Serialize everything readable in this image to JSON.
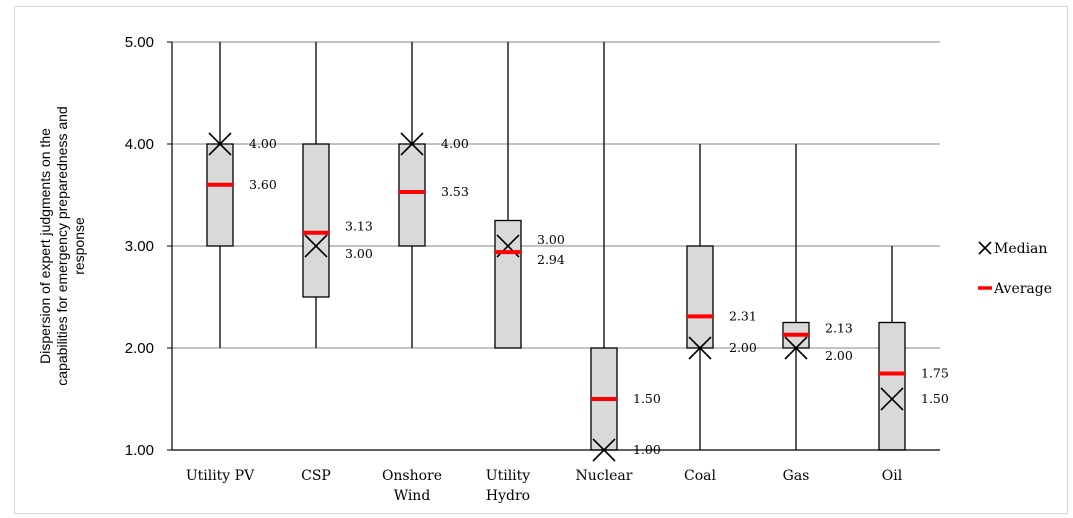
{
  "chart_data": {
    "type": "boxplot",
    "ylabel_lines": [
      "Dispersion of expert judgments on the",
      "capabilities for emergency preparedness and",
      "response"
    ],
    "ylim": [
      1,
      5
    ],
    "yticks": [
      "1.00",
      "2.00",
      "3.00",
      "4.00",
      "5.00"
    ],
    "grid": true,
    "legend_position": "right",
    "categories": [
      {
        "lines": [
          "Utility PV"
        ],
        "min": 2,
        "q1": 3,
        "q3": 4,
        "max": 5,
        "median": 4,
        "average": 3.6,
        "median_label": "4.00",
        "average_label": "3.60"
      },
      {
        "lines": [
          "CSP"
        ],
        "min": 2,
        "q1": 2.5,
        "q3": 4,
        "max": 5,
        "median": 3,
        "average": 3.13,
        "median_label": "3.00",
        "average_label": "3.13"
      },
      {
        "lines": [
          "Onshore",
          "Wind"
        ],
        "min": 2,
        "q1": 3,
        "q3": 4,
        "max": 5,
        "median": 4,
        "average": 3.53,
        "median_label": "4.00",
        "average_label": "3.53"
      },
      {
        "lines": [
          "Utility",
          "Hydro"
        ],
        "min": 2,
        "q1": 2,
        "q3": 3.25,
        "max": 5,
        "median": 3,
        "average": 2.94,
        "median_label": "3.00",
        "average_label": "2.94"
      },
      {
        "lines": [
          "Nuclear"
        ],
        "min": 1,
        "q1": 1,
        "q3": 2,
        "max": 5,
        "median": 1,
        "average": 1.5,
        "median_label": "1.00",
        "average_label": "1.50"
      },
      {
        "lines": [
          "Coal"
        ],
        "min": 1,
        "q1": 2,
        "q3": 3,
        "max": 4,
        "median": 2,
        "average": 2.31,
        "median_label": "2.00",
        "average_label": "2.31"
      },
      {
        "lines": [
          "Gas"
        ],
        "min": 1,
        "q1": 2,
        "q3": 2.25,
        "max": 4,
        "median": 2,
        "average": 2.13,
        "median_label": "2.00",
        "average_label": "2.13"
      },
      {
        "lines": [
          "Oil"
        ],
        "min": 1,
        "q1": 1,
        "q3": 2.25,
        "max": 3,
        "median": 1.5,
        "average": 1.75,
        "median_label": "1.50",
        "average_label": "1.75"
      }
    ],
    "legend": [
      {
        "key": "median",
        "label": "Median",
        "marker": "x",
        "color": "#000000"
      },
      {
        "key": "average",
        "label": "Average",
        "marker": "dash",
        "color": "#ff0000"
      }
    ],
    "colors": {
      "box_fill": "#d9d9d9",
      "average": "#ff0000",
      "median": "#000000",
      "grid": "#868686"
    }
  }
}
